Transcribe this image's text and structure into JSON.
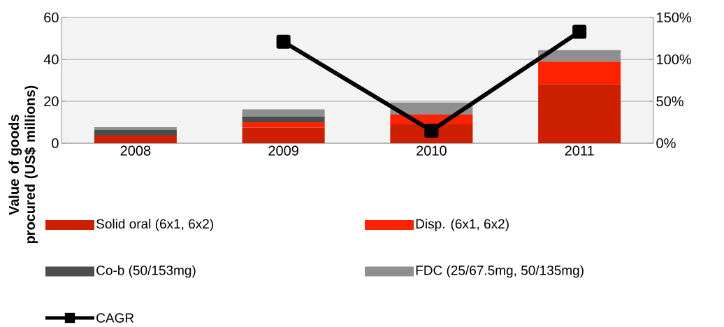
{
  "chart_data": {
    "type": "bar",
    "stacked": true,
    "categories": [
      "2008",
      "2009",
      "2010",
      "2011"
    ],
    "ylabel": "Value of goods procured (US$ millions)",
    "series": [
      {
        "name": "Solid oral (6x1, 6x2)",
        "color": "#cc1f00",
        "values": [
          3.7,
          7.5,
          9,
          28.1
        ]
      },
      {
        "name": "Disp. (6x1, 6x2)",
        "color": "#ff2200",
        "values": [
          0,
          2.5,
          4.7,
          10.8
        ]
      },
      {
        "name": "Co-b (50/153mg)",
        "color": "#4d4d4d",
        "values": [
          2.6,
          2.7,
          0,
          0
        ]
      },
      {
        "name": "FDC (25/67.5mg, 50/135mg)",
        "color": "#8f8f8f",
        "values": [
          1.4,
          3.5,
          5.7,
          5.5
        ]
      },
      {
        "name": "CAGR",
        "type": "line",
        "axis": "y2",
        "color": "#000000",
        "marker": "square",
        "line_style": "solid",
        "values": [
          null,
          121,
          15,
          133
        ]
      }
    ],
    "ylim": [
      0,
      60
    ],
    "yticks": [
      0,
      20,
      40,
      60
    ],
    "y2lim": [
      0,
      150
    ],
    "y2ticks": [
      {
        "value": 0,
        "label": "0%"
      },
      {
        "value": 50,
        "label": "50%"
      },
      {
        "value": 100,
        "label": "100%"
      },
      {
        "value": 150,
        "label": "150%"
      }
    ],
    "grid": "y",
    "legend": "bottom"
  }
}
